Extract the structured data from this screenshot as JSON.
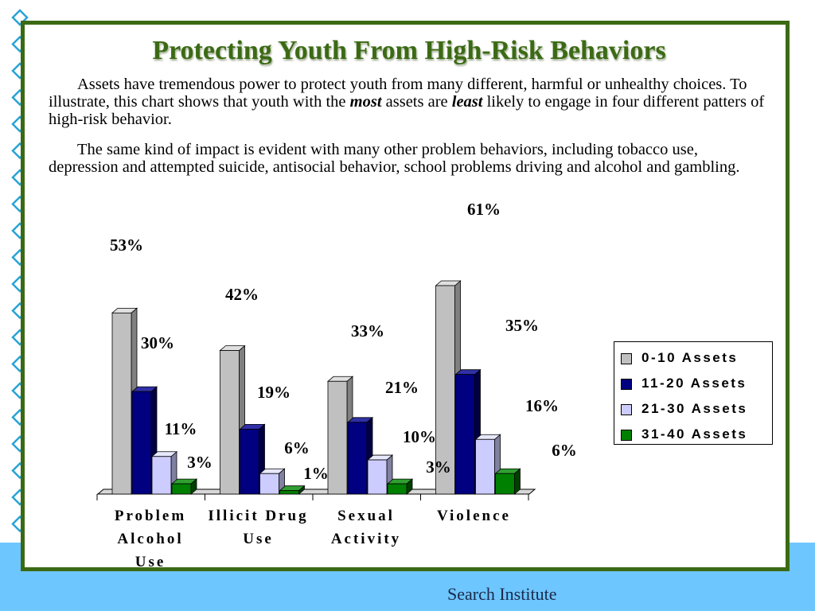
{
  "slide": {
    "title": "Protecting Youth From High-Risk Behaviors",
    "paragraph1": {
      "part1": "Assets have tremendous power to protect youth from many different, harmful or unhealthy choices. To illustrate, this chart shows that youth with the ",
      "em1": "most",
      "part2": " assets are ",
      "em2": "least",
      "part3": " likely to engage in four different patters of high-risk behavior."
    },
    "paragraph2": "The same kind of impact is evident with many other problem behaviors, including tobacco use, depression and attempted suicide, antisocial behavior, school problems driving and alcohol and gambling.",
    "footer": "Search Institute"
  },
  "colors": {
    "frame": "#3b6a14",
    "band": "#6ec6ff",
    "deco": "#29a3d6"
  },
  "chart_data": {
    "type": "bar",
    "categories": [
      "Problem Alcohol Use",
      "Illicit Drug Use",
      "Sexual Activity",
      "Violence"
    ],
    "category_lines": [
      [
        "Problem",
        "Alcohol",
        "Use"
      ],
      [
        "Illicit Drug",
        "Use"
      ],
      [
        "Sexual",
        "Activity"
      ],
      [
        "Violence"
      ]
    ],
    "series": [
      {
        "name": "0-10 Assets",
        "values": [
          53,
          42,
          33,
          61
        ],
        "labels": [
          "53%",
          "42%",
          "33%",
          "61%"
        ],
        "color": "#c0c0c0",
        "side": "#808080",
        "top": "#e0e0e0"
      },
      {
        "name": "11-20 Assets",
        "values": [
          30,
          19,
          21,
          35
        ],
        "labels": [
          "30%",
          "19%",
          "21%",
          "35%"
        ],
        "color": "#000080",
        "side": "#000040",
        "top": "#3030a8"
      },
      {
        "name": "21-30 Assets",
        "values": [
          11,
          6,
          10,
          16
        ],
        "labels": [
          "11%",
          "6%",
          "10%",
          "16%"
        ],
        "color": "#ccccff",
        "side": "#8080a0",
        "top": "#e8e8ff"
      },
      {
        "name": "31-40 Assets",
        "values": [
          3,
          1,
          3,
          6
        ],
        "labels": [
          "3%",
          "1%",
          "3%",
          "6%"
        ],
        "color": "#008000",
        "side": "#004000",
        "top": "#30a030"
      }
    ],
    "ylim": [
      0,
      61
    ],
    "legend_position": "right",
    "grid": false,
    "three_d": true
  }
}
